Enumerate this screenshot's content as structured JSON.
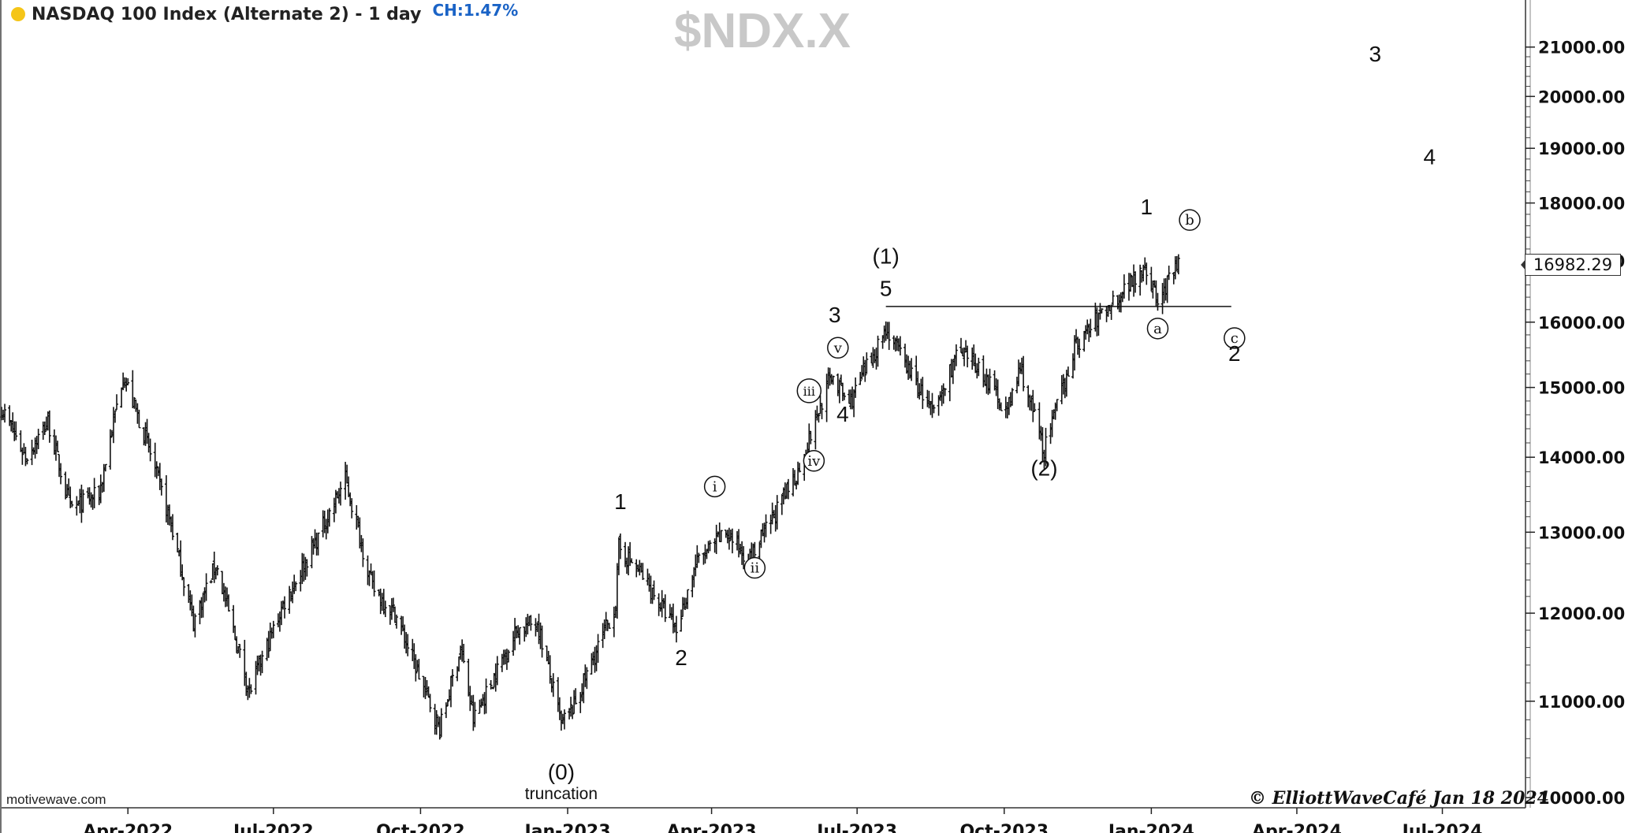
{
  "header": {
    "title": "NASDAQ 100 Index (Alternate 2) - 1 day",
    "change": "CH:1.47%",
    "watermark": "$NDX.X"
  },
  "footer": {
    "source": "motivewave.com",
    "copyright": "© ElliottWaveCafé Jan 18 2024"
  },
  "last_price": "16982.29",
  "colors": {
    "bars": "#111111",
    "status_dot": "#f5c518",
    "change_text": "#1a63c6",
    "watermark": "#c8c8c8"
  },
  "chart_data": {
    "type": "ohlc",
    "scale": "log",
    "ylim": [
      9900,
      22000
    ],
    "y_ticks": [
      "10000.00",
      "11000.00",
      "12000.00",
      "13000.00",
      "14000.00",
      "15000.00",
      "16000.00",
      "17000.00",
      "18000.00",
      "19000.00",
      "20000.00",
      "21000.00"
    ],
    "x_ticks": [
      {
        "date": "2022-04-01",
        "label": "Apr-2022"
      },
      {
        "date": "2022-07-01",
        "label": "Jul-2022"
      },
      {
        "date": "2022-10-01",
        "label": "Oct-2022"
      },
      {
        "date": "2023-01-01",
        "label": "Jan-2023"
      },
      {
        "date": "2023-04-01",
        "label": "Apr-2023"
      },
      {
        "date": "2023-07-01",
        "label": "Jul-2023"
      },
      {
        "date": "2023-10-01",
        "label": "Oct-2023"
      },
      {
        "date": "2024-01-01",
        "label": "Jan-2024"
      },
      {
        "date": "2024-04-01",
        "label": "Apr-2024"
      },
      {
        "date": "2024-07-01",
        "label": "Jul-2024"
      }
    ],
    "x_range": [
      "2022-01-12",
      "2024-08-22"
    ],
    "price_path": [
      [
        "2022-01-12",
        14700
      ],
      [
        "2022-01-27",
        14000
      ],
      [
        "2022-02-10",
        14500
      ],
      [
        "2022-02-24",
        13300
      ],
      [
        "2022-03-14",
        13500
      ],
      [
        "2022-03-29",
        15200
      ],
      [
        "2022-04-13",
        14200
      ],
      [
        "2022-04-28",
        13100
      ],
      [
        "2022-05-12",
        11900
      ],
      [
        "2022-05-26",
        12600
      ],
      [
        "2022-06-16",
        11100
      ],
      [
        "2022-07-07",
        12100
      ],
      [
        "2022-07-28",
        12900
      ],
      [
        "2022-08-15",
        13700
      ],
      [
        "2022-09-01",
        12300
      ],
      [
        "2022-09-15",
        12000
      ],
      [
        "2022-10-13",
        10700
      ],
      [
        "2022-10-26",
        11600
      ],
      [
        "2022-11-03",
        10800
      ],
      [
        "2022-11-30",
        11800
      ],
      [
        "2022-12-13",
        11900
      ],
      [
        "2022-12-28",
        10750
      ],
      [
        "2023-01-05",
        10950
      ],
      [
        "2023-01-31",
        12100
      ],
      [
        "2023-02-02",
        12800
      ],
      [
        "2023-02-15",
        12500
      ],
      [
        "2023-03-10",
        11800
      ],
      [
        "2023-03-22",
        12600
      ],
      [
        "2023-04-10",
        13000
      ],
      [
        "2023-04-25",
        12650
      ],
      [
        "2023-05-25",
        13800
      ],
      [
        "2023-06-15",
        15200
      ],
      [
        "2023-06-26",
        14750
      ],
      [
        "2023-07-19",
        15900
      ],
      [
        "2023-08-18",
        14600
      ],
      [
        "2023-09-01",
        15500
      ],
      [
        "2023-09-15",
        15300
      ],
      [
        "2023-10-03",
        14650
      ],
      [
        "2023-10-11",
        15300
      ],
      [
        "2023-10-26",
        14100
      ],
      [
        "2023-11-14",
        15600
      ],
      [
        "2023-11-28",
        16050
      ],
      [
        "2023-12-14",
        16500
      ],
      [
        "2023-12-28",
        16950
      ],
      [
        "2024-01-05",
        16300
      ],
      [
        "2024-01-18",
        16982
      ]
    ],
    "resistance_line": {
      "price": 16250,
      "from": "2023-07-19",
      "to": "2024-02-20"
    },
    "annotations": [
      {
        "text": "(0)",
        "date": "2022-12-28",
        "price": 10180,
        "style": "plain"
      },
      {
        "text": "truncation",
        "date": "2022-12-28",
        "price": 9985,
        "style": "small"
      },
      {
        "text": "1",
        "date": "2023-02-03",
        "price": 13300,
        "style": "plain"
      },
      {
        "text": "2",
        "date": "2023-03-13",
        "price": 11400,
        "style": "plain"
      },
      {
        "text": "i",
        "date": "2023-04-03",
        "price": 13600,
        "style": "circle"
      },
      {
        "text": "ii",
        "date": "2023-04-28",
        "price": 12550,
        "style": "circle"
      },
      {
        "text": "iii",
        "date": "2023-06-01",
        "price": 14950,
        "style": "circle"
      },
      {
        "text": "iv",
        "date": "2023-06-04",
        "price": 13950,
        "style": "circle"
      },
      {
        "text": "v",
        "date": "2023-06-19",
        "price": 15600,
        "style": "circle"
      },
      {
        "text": "3",
        "date": "2023-06-17",
        "price": 16000,
        "style": "plain"
      },
      {
        "text": "4",
        "date": "2023-06-22",
        "price": 14500,
        "style": "plain"
      },
      {
        "text": "(1)",
        "date": "2023-07-19",
        "price": 16950,
        "style": "plain"
      },
      {
        "text": "5",
        "date": "2023-07-19",
        "price": 16420,
        "style": "plain"
      },
      {
        "text": "(2)",
        "date": "2023-10-26",
        "price": 13750,
        "style": "plain"
      },
      {
        "text": "1",
        "date": "2023-12-29",
        "price": 17800,
        "style": "plain"
      },
      {
        "text": "a",
        "date": "2024-01-05",
        "price": 15900,
        "style": "circle"
      },
      {
        "text": "b",
        "date": "2024-01-25",
        "price": 17700,
        "style": "circle"
      },
      {
        "text": "c",
        "date": "2024-02-22",
        "price": 15750,
        "style": "circle"
      },
      {
        "text": "2",
        "date": "2024-02-22",
        "price": 15400,
        "style": "plain"
      },
      {
        "text": "3",
        "date": "2024-05-20",
        "price": 20700,
        "style": "plain"
      },
      {
        "text": "4",
        "date": "2024-06-23",
        "price": 18700,
        "style": "plain"
      }
    ]
  }
}
